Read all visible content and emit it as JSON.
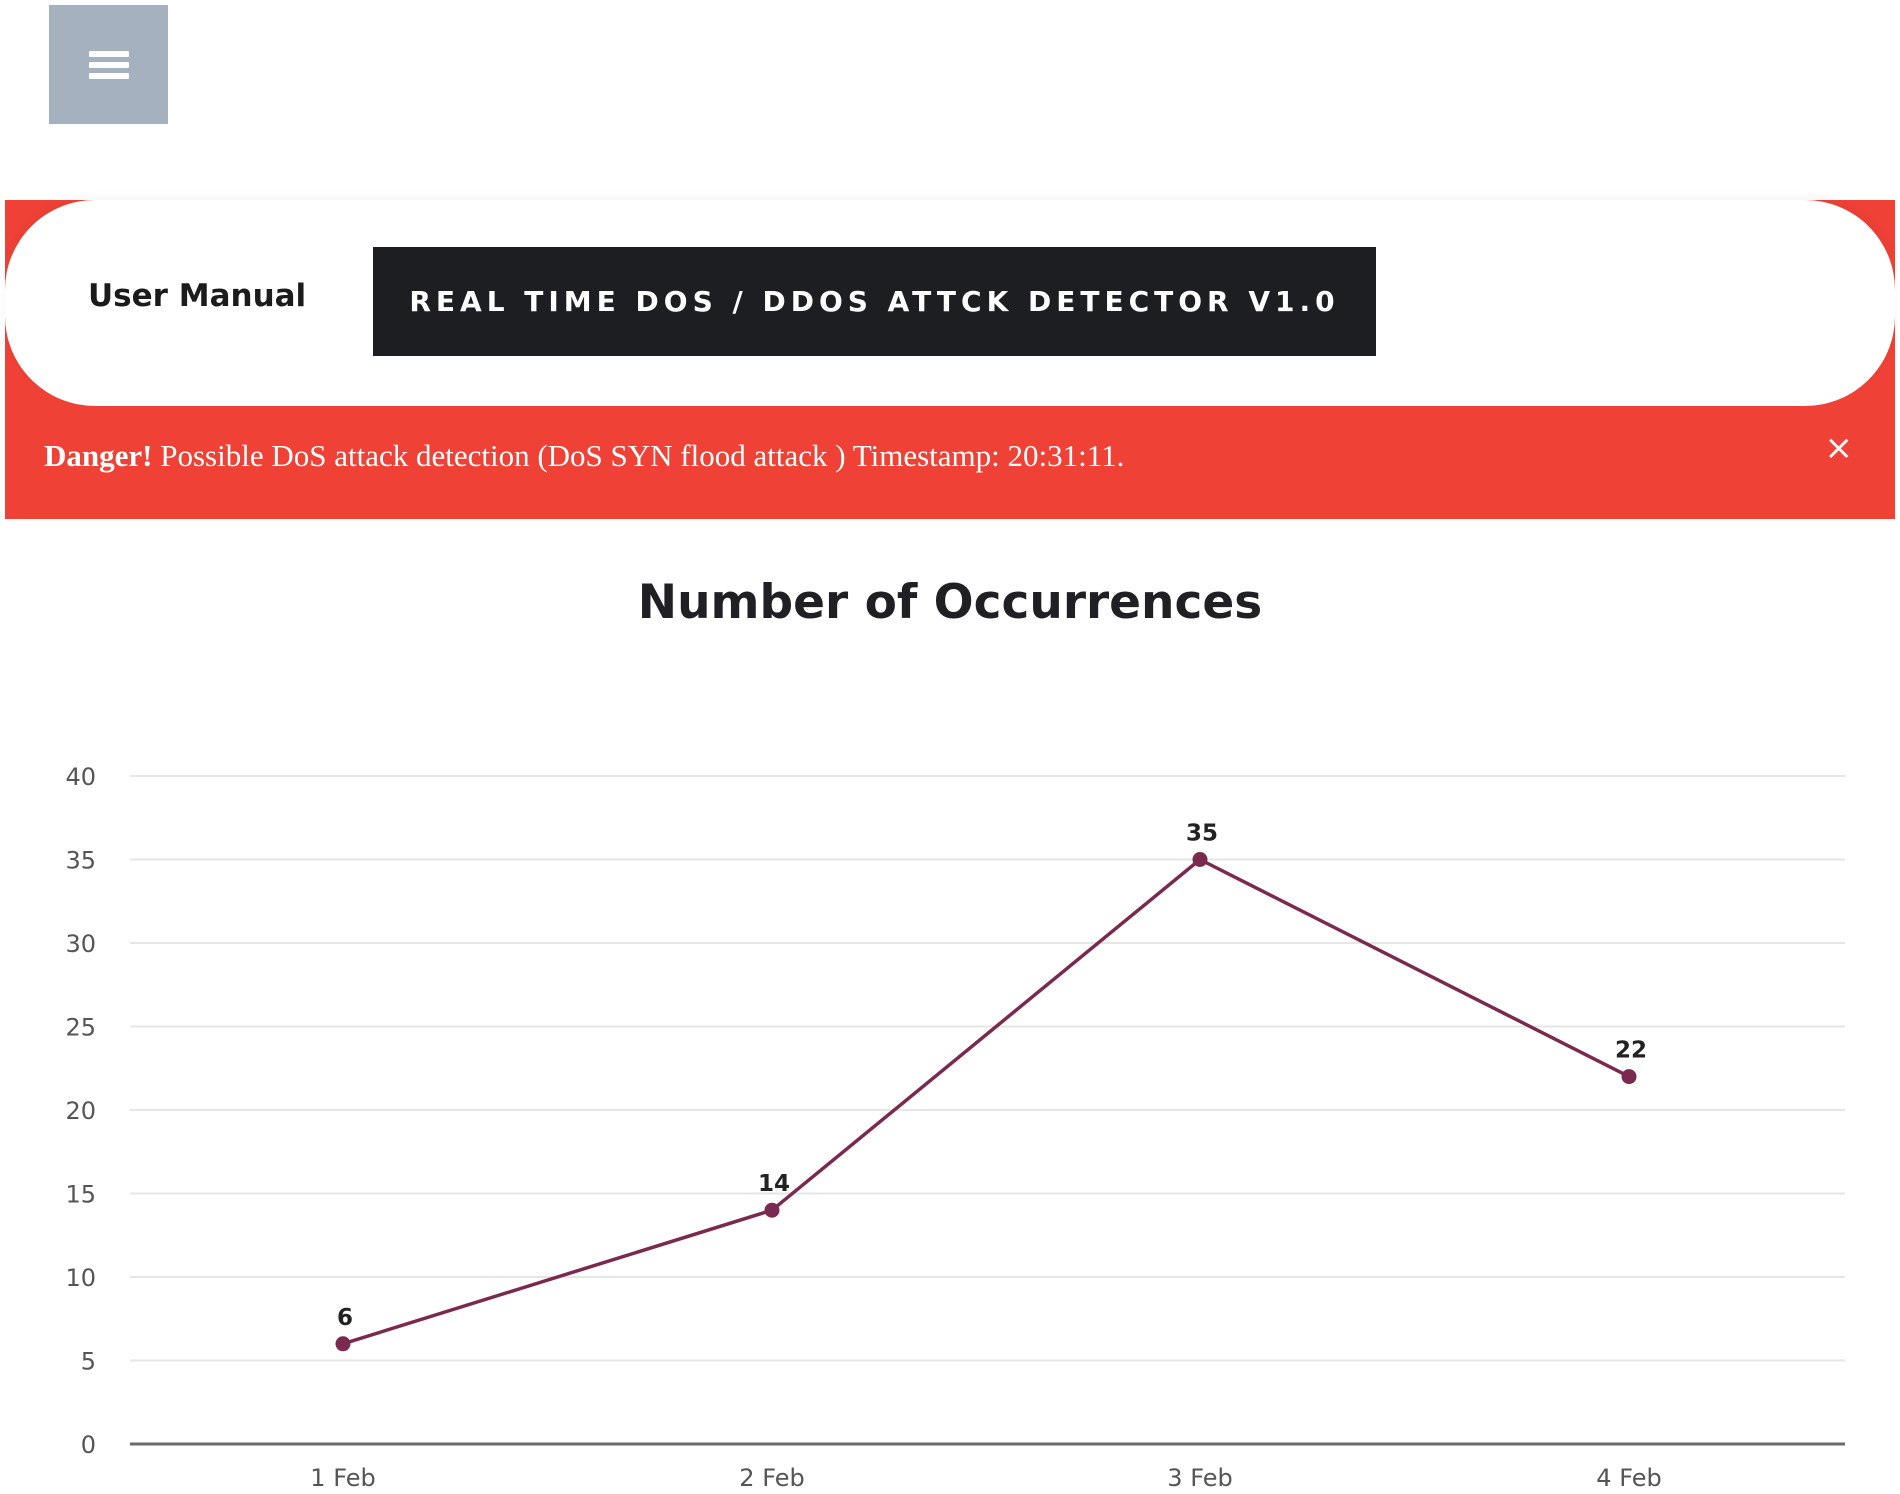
{
  "header": {
    "menu_icon": "hamburger-menu-icon",
    "user_manual_label": "User Manual",
    "app_title": "REAL TIME DOS / DDOS ATTCK DETECTOR V1.0"
  },
  "alert": {
    "strong_label": "Danger!",
    "message": "Possible DoS attack detection (DoS SYN flood attack ) Timestamp: 20:31:11.",
    "close_symbol": "×",
    "color": "#ef4136"
  },
  "chart_data": {
    "type": "line",
    "title": "Number of Occurrences",
    "categories": [
      "1 Feb",
      "2 Feb",
      "3 Feb",
      "4 Feb"
    ],
    "series": [
      {
        "values": [
          6,
          14,
          35,
          22
        ],
        "color": "#7b2a4f"
      }
    ],
    "ylim": [
      0,
      40
    ],
    "yticks": [
      0,
      5,
      10,
      15,
      20,
      25,
      30,
      35,
      40
    ],
    "grid": true,
    "data_labels": true
  }
}
